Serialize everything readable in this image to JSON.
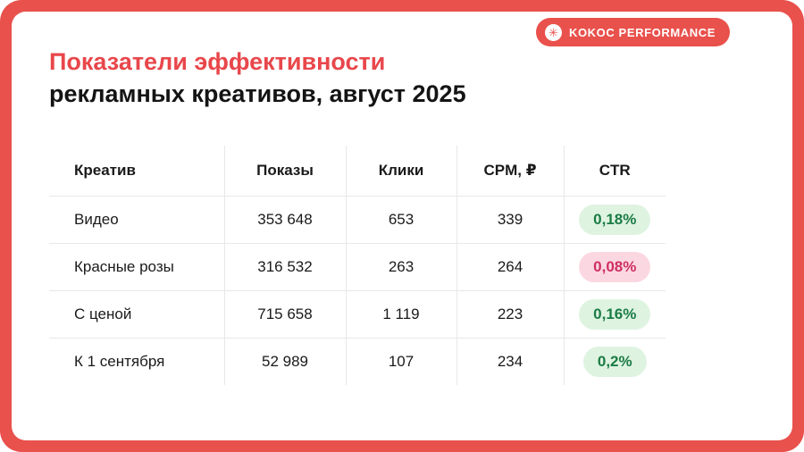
{
  "brand": {
    "name": "KOKOC PERFORMANCE",
    "icon": "✳"
  },
  "title": {
    "line1": "Показатели эффективности",
    "line2": "рекламных креативов, август 2025"
  },
  "colors": {
    "frame_red": "#E9514C",
    "title_red": "#E8474B",
    "badge_green_bg": "#DFF3E1",
    "badge_green_text": "#1B7C45",
    "badge_pink_bg": "#FBD8E1",
    "badge_pink_text": "#CE2F62",
    "table_border": "#E8E8E8"
  },
  "table": {
    "headers": [
      "Креатив",
      "Показы",
      "Клики",
      "CPM, ₽",
      "CTR"
    ],
    "rows": [
      {
        "name": "Видео",
        "impressions": "353 648",
        "clicks": "653",
        "cpm": "339",
        "ctr": "0,18%",
        "ctr_status": "green"
      },
      {
        "name": "Красные розы",
        "impressions": "316 532",
        "clicks": "263",
        "cpm": "264",
        "ctr": "0,08%",
        "ctr_status": "pink"
      },
      {
        "name": "С ценой",
        "impressions": "715 658",
        "clicks": "1 119",
        "cpm": "223",
        "ctr": "0,16%",
        "ctr_status": "green"
      },
      {
        "name": "К 1 сентября",
        "impressions": "52 989",
        "clicks": "107",
        "cpm": "234",
        "ctr": "0,2%",
        "ctr_status": "green"
      }
    ]
  },
  "chart_data": {
    "type": "table",
    "title": "Показатели эффективности рекламных креативов, август 2025",
    "columns": [
      "Креатив",
      "Показы",
      "Клики",
      "CPM, ₽",
      "CTR"
    ],
    "rows": [
      [
        "Видео",
        353648,
        653,
        339,
        "0,18%"
      ],
      [
        "Красные розы",
        316532,
        263,
        264,
        "0,08%"
      ],
      [
        "С ценой",
        715658,
        1119,
        223,
        "0,16%"
      ],
      [
        "К 1 сентября",
        52989,
        107,
        234,
        "0,2%"
      ]
    ],
    "notes": "CTR badges colored green except Красные розы (pink/negative highlight)"
  }
}
